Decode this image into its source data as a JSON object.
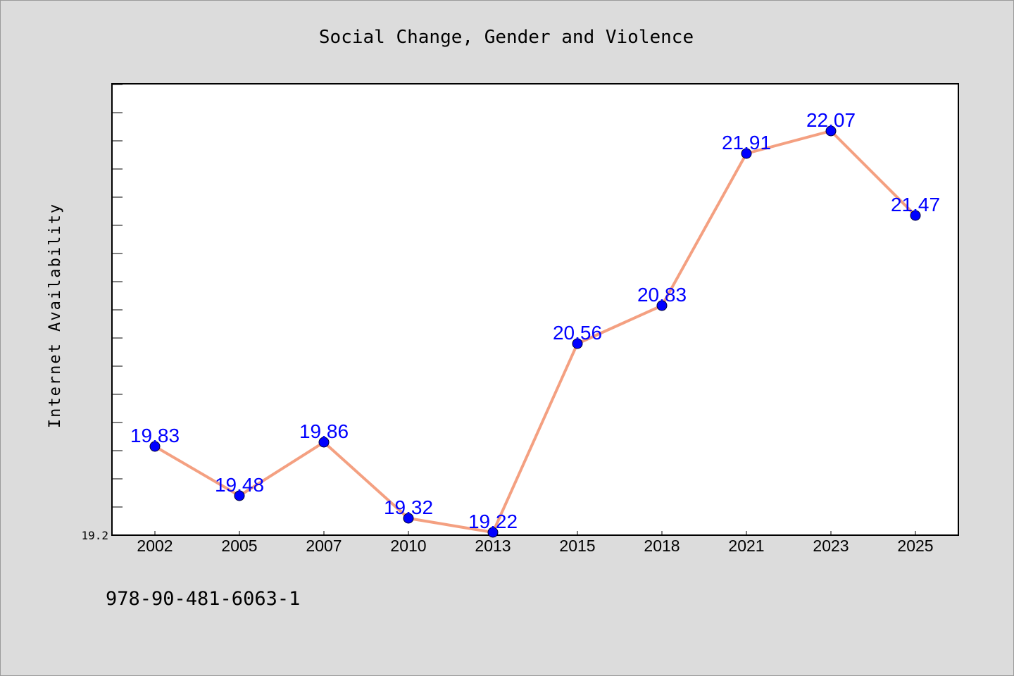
{
  "footer": {
    "isbn": "978-90-481-6063-1"
  },
  "colors": {
    "line": "#f4a081",
    "marker": "#0000ff",
    "label": "#0000ff",
    "background": "#dcdcdc",
    "plot_background": "#ffffff"
  },
  "chart_data": {
    "type": "line",
    "title": "Social Change, Gender and Violence",
    "xlabel": "",
    "ylabel": "Internet Availability",
    "categories": [
      "2002",
      "2005",
      "2007",
      "2010",
      "2013",
      "2015",
      "2018",
      "2021",
      "2023",
      "2025"
    ],
    "series": [
      {
        "values": [
          19.83,
          19.48,
          19.86,
          19.32,
          19.22,
          20.56,
          20.83,
          21.91,
          22.07,
          21.47
        ]
      }
    ],
    "value_labels": [
      "19.83",
      "19.48",
      "19.86",
      "19.32",
      "19.22",
      "20.56",
      "20.83",
      "21.91",
      "22.07",
      "21.47"
    ],
    "ylim": [
      19.2,
      22.4
    ],
    "ytick_labels": [
      "19.2"
    ],
    "grid": false,
    "legend": "none"
  }
}
